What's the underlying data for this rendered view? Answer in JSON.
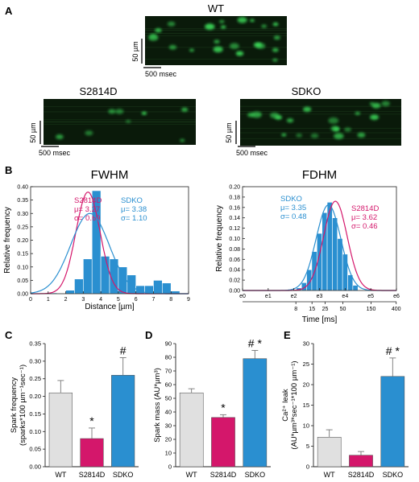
{
  "panels": {
    "A": {
      "letter": "A",
      "images": [
        {
          "title": "WT",
          "scale_y": "50 µm",
          "scale_x": "500 msec"
        },
        {
          "title": "S2814D",
          "scale_y": "50 µm",
          "scale_x": "500 msec"
        },
        {
          "title": "SDKO",
          "scale_y": "50 µm",
          "scale_x": "500 msec"
        }
      ],
      "colors": {
        "background": "#0a1a0a",
        "spark": "#3cdc5a"
      }
    },
    "B": {
      "letter": "B"
    },
    "C": {
      "letter": "C"
    },
    "D": {
      "letter": "D"
    },
    "E": {
      "letter": "E"
    }
  },
  "colors": {
    "wt": "#e0e0e0",
    "s2814d": "#d4176b",
    "sdko": "#2a8fd0",
    "bar_edge": "#444444"
  },
  "chart_data": [
    {
      "id": "fwhm",
      "type": "bar",
      "title": "FWHM",
      "xlabel": "Distance [µm]",
      "ylabel": "Relative frequency",
      "xlim": [
        0,
        9
      ],
      "ylim": [
        0,
        0.4
      ],
      "xticks": [
        "0",
        "1",
        "2",
        "3",
        "4",
        "5",
        "6",
        "7",
        "8",
        "9"
      ],
      "yticks": [
        "0.00",
        "0.05",
        "0.10",
        "0.15",
        "0.20",
        "0.25",
        "0.30",
        "0.35",
        "0.40"
      ],
      "histogram": {
        "name": "SDKO",
        "bin_width": 0.5,
        "bin_centers": [
          1.25,
          2.25,
          2.75,
          3.25,
          3.75,
          4.25,
          4.75,
          5.25,
          5.75,
          6.25,
          6.75,
          7.25,
          7.75,
          8.25
        ],
        "values": [
          0.003,
          0.013,
          0.055,
          0.13,
          0.385,
          0.14,
          0.13,
          0.1,
          0.07,
          0.03,
          0.03,
          0.05,
          0.04,
          0.01
        ]
      },
      "fits": [
        {
          "name": "S2814D",
          "mu": 3.27,
          "sigma": 0.69,
          "mu_label": "μ= 3.27",
          "sigma_label": "σ= 0.69"
        },
        {
          "name": "SDKO",
          "mu": 3.38,
          "sigma": 1.1,
          "mu_label": "μ= 3.38",
          "sigma_label": "σ= 1.10"
        }
      ]
    },
    {
      "id": "fdhm",
      "type": "bar",
      "title": "FDHM",
      "xlabel": "Time [ms]",
      "ylabel": "Relative frequency",
      "xscale": "log",
      "xlim": [
        0,
        6
      ],
      "ylim": [
        0,
        0.2
      ],
      "xticks_top": [
        "e0",
        "e1",
        "e2",
        "e3",
        "e4",
        "e5",
        "e6"
      ],
      "xticks_bottom": [
        {
          "pos": 2.0794,
          "label": "8"
        },
        {
          "pos": 2.7081,
          "label": "15"
        },
        {
          "pos": 3.2189,
          "label": "25"
        },
        {
          "pos": 3.912,
          "label": "50"
        },
        {
          "pos": 5.0106,
          "label": "150"
        },
        {
          "pos": 5.9915,
          "label": "400"
        }
      ],
      "yticks": [
        "0.00",
        "0.02",
        "0.04",
        "0.06",
        "0.08",
        "0.10",
        "0.12",
        "0.14",
        "0.16",
        "0.18",
        "0.20"
      ],
      "histogram": {
        "name": "SDKO",
        "bin_width": 0.2,
        "bin_centers": [
          2.2,
          2.4,
          2.6,
          2.8,
          3.0,
          3.2,
          3.4,
          3.6,
          3.8,
          4.0,
          4.2,
          4.4
        ],
        "values": [
          0.005,
          0.015,
          0.04,
          0.075,
          0.11,
          0.15,
          0.17,
          0.14,
          0.1,
          0.07,
          0.03,
          0.01
        ]
      },
      "fits": [
        {
          "name": "SDKO",
          "mu": 3.35,
          "sigma": 0.48,
          "mu_label": "μ= 3.35",
          "sigma_label": "σ= 0.48"
        },
        {
          "name": "S2814D",
          "mu": 3.62,
          "sigma": 0.46,
          "mu_label": "μ= 3.62",
          "sigma_label": "σ= 0.46"
        }
      ]
    },
    {
      "id": "spark_frequency",
      "type": "bar",
      "letter": "C",
      "categories": [
        "WT",
        "S2814D",
        "SDKO"
      ],
      "values": [
        0.21,
        0.08,
        0.26
      ],
      "errors": [
        0.035,
        0.03,
        0.05
      ],
      "markers": [
        "",
        "*",
        "#"
      ],
      "ylabel_lines": [
        "Spark frequency",
        "(sparks*100 µm⁻¹sec⁻¹)"
      ],
      "ylim": [
        0,
        0.35
      ],
      "yticks": [
        "0.00",
        "0.05",
        "0.10",
        "0.15",
        "0.20",
        "0.25",
        "0.30",
        "0.35"
      ]
    },
    {
      "id": "spark_mass",
      "type": "bar",
      "letter": "D",
      "categories": [
        "WT",
        "S2814D",
        "SDKO"
      ],
      "values": [
        54,
        36,
        79
      ],
      "errors": [
        3,
        2,
        6
      ],
      "markers": [
        "",
        "*",
        "# *"
      ],
      "ylabel_lines": [
        "Spark mass (AU*µm³)"
      ],
      "ylim": [
        0,
        90
      ],
      "yticks": [
        "0",
        "10",
        "20",
        "30",
        "40",
        "50",
        "60",
        "70",
        "80",
        "90"
      ]
    },
    {
      "id": "ca_leak",
      "type": "bar",
      "letter": "E",
      "categories": [
        "WT",
        "S2814D",
        "SDKO"
      ],
      "values": [
        7.2,
        2.8,
        22.0
      ],
      "errors": [
        1.8,
        0.9,
        4.5
      ],
      "markers": [
        "",
        "",
        "# *"
      ],
      "ylabel_lines": [
        "Ca²⁺ leak",
        "(AU*µm³*sec⁻¹*100 µm⁻¹)"
      ],
      "ylim": [
        0,
        30
      ],
      "yticks": [
        "0",
        "5",
        "10",
        "15",
        "20",
        "25",
        "30"
      ]
    }
  ]
}
